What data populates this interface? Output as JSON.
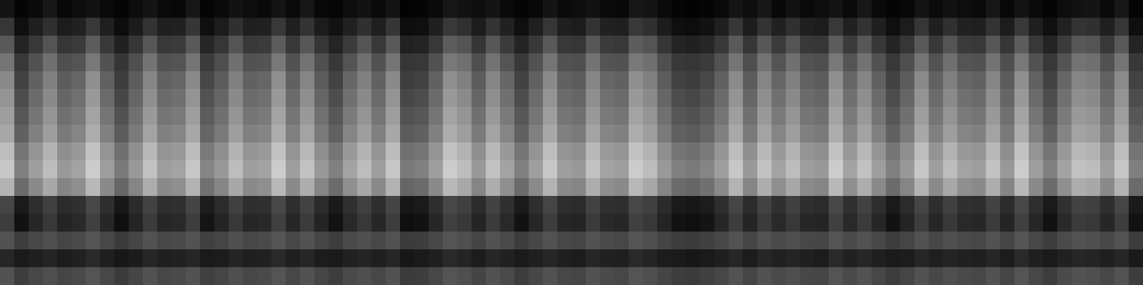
{
  "chart_data": {
    "type": "heatmap",
    "tick_labels": false,
    "zlim": [
      0,
      100
    ],
    "z": [
      [
        8,
        2,
        4,
        9,
        3,
        5,
        7,
        4,
        2,
        5,
        8,
        4,
        3,
        9,
        2,
        4,
        7,
        5,
        4,
        8,
        4,
        9,
        3,
        2,
        5,
        7,
        4,
        8,
        1,
        2,
        4,
        9,
        7,
        5,
        8,
        4,
        2,
        3,
        8,
        4,
        5,
        7,
        4,
        3,
        9,
        8,
        4,
        2,
        1,
        2,
        4,
        8,
        5,
        9,
        3,
        7,
        4,
        5,
        8,
        4,
        9,
        4,
        2,
        3,
        8,
        4,
        7,
        5,
        4,
        9,
        3,
        8,
        4,
        2,
        5,
        7,
        8,
        4,
        9,
        2
      ],
      [
        21,
        6,
        12,
        19,
        11,
        13,
        22,
        12,
        5,
        11,
        20,
        12,
        13,
        21,
        6,
        11,
        19,
        12,
        13,
        22,
        12,
        20,
        11,
        7,
        13,
        19,
        12,
        21,
        5,
        6,
        12,
        22,
        19,
        11,
        20,
        13,
        6,
        12,
        21,
        12,
        11,
        20,
        13,
        12,
        22,
        19,
        11,
        6,
        5,
        7,
        12,
        21,
        11,
        20,
        13,
        19,
        12,
        11,
        22,
        13,
        20,
        12,
        6,
        11,
        21,
        12,
        19,
        13,
        12,
        20,
        11,
        22,
        12,
        6,
        13,
        20,
        19,
        12,
        21,
        6
      ],
      [
        35,
        14,
        22,
        33,
        21,
        23,
        36,
        22,
        13,
        21,
        34,
        22,
        23,
        35,
        15,
        21,
        33,
        22,
        23,
        36,
        22,
        34,
        21,
        14,
        23,
        33,
        22,
        35,
        13,
        14,
        22,
        36,
        33,
        21,
        34,
        23,
        14,
        22,
        35,
        22,
        21,
        34,
        23,
        22,
        36,
        33,
        21,
        14,
        13,
        15,
        22,
        35,
        21,
        34,
        23,
        33,
        22,
        21,
        36,
        23,
        34,
        22,
        14,
        21,
        35,
        22,
        33,
        23,
        22,
        34,
        21,
        36,
        22,
        14,
        23,
        34,
        33,
        22,
        35,
        14
      ],
      [
        46,
        22,
        32,
        44,
        31,
        33,
        47,
        32,
        21,
        31,
        45,
        32,
        33,
        46,
        23,
        31,
        44,
        32,
        33,
        47,
        32,
        45,
        31,
        22,
        33,
        44,
        32,
        46,
        21,
        22,
        32,
        47,
        44,
        31,
        45,
        33,
        22,
        32,
        46,
        32,
        31,
        45,
        33,
        32,
        47,
        44,
        31,
        22,
        21,
        23,
        32,
        46,
        31,
        45,
        33,
        44,
        32,
        31,
        47,
        33,
        45,
        32,
        22,
        31,
        46,
        32,
        44,
        33,
        32,
        45,
        31,
        47,
        32,
        22,
        33,
        45,
        44,
        32,
        46,
        22
      ],
      [
        54,
        26,
        38,
        50,
        36,
        40,
        56,
        38,
        24,
        36,
        52,
        38,
        40,
        54,
        28,
        36,
        50,
        38,
        40,
        56,
        38,
        52,
        36,
        26,
        40,
        50,
        38,
        54,
        24,
        26,
        38,
        56,
        50,
        36,
        52,
        40,
        26,
        38,
        54,
        38,
        36,
        52,
        40,
        38,
        56,
        50,
        36,
        26,
        24,
        28,
        38,
        54,
        36,
        52,
        40,
        50,
        38,
        36,
        56,
        40,
        52,
        38,
        26,
        36,
        54,
        38,
        50,
        40,
        38,
        52,
        36,
        56,
        38,
        26,
        40,
        52,
        50,
        38,
        54,
        26
      ],
      [
        58,
        30,
        42,
        54,
        40,
        44,
        60,
        42,
        28,
        40,
        56,
        42,
        44,
        58,
        32,
        40,
        54,
        42,
        44,
        60,
        42,
        56,
        40,
        30,
        44,
        54,
        42,
        58,
        28,
        30,
        42,
        60,
        54,
        40,
        56,
        44,
        30,
        42,
        58,
        42,
        40,
        56,
        44,
        42,
        60,
        54,
        40,
        30,
        28,
        32,
        42,
        58,
        40,
        56,
        44,
        54,
        42,
        40,
        60,
        44,
        56,
        42,
        30,
        40,
        58,
        42,
        54,
        44,
        42,
        56,
        40,
        60,
        42,
        30,
        44,
        56,
        54,
        42,
        58,
        30
      ],
      [
        62,
        34,
        46,
        58,
        44,
        48,
        64,
        46,
        32,
        44,
        60,
        46,
        48,
        62,
        36,
        44,
        58,
        46,
        48,
        64,
        46,
        60,
        44,
        34,
        48,
        58,
        46,
        62,
        32,
        34,
        46,
        64,
        58,
        44,
        60,
        48,
        34,
        46,
        62,
        46,
        44,
        60,
        48,
        46,
        64,
        58,
        44,
        34,
        32,
        36,
        46,
        62,
        44,
        60,
        48,
        58,
        46,
        44,
        64,
        48,
        60,
        46,
        34,
        44,
        62,
        46,
        58,
        48,
        46,
        60,
        44,
        64,
        46,
        34,
        48,
        60,
        58,
        46,
        62,
        34
      ],
      [
        66,
        38,
        50,
        62,
        48,
        52,
        68,
        50,
        36,
        48,
        64,
        50,
        52,
        66,
        40,
        48,
        62,
        50,
        52,
        68,
        50,
        64,
        48,
        38,
        52,
        62,
        50,
        66,
        36,
        38,
        50,
        68,
        62,
        48,
        64,
        52,
        38,
        50,
        66,
        50,
        48,
        64,
        52,
        50,
        68,
        62,
        48,
        38,
        36,
        40,
        50,
        66,
        48,
        64,
        52,
        62,
        50,
        48,
        68,
        52,
        64,
        50,
        38,
        48,
        66,
        50,
        62,
        52,
        50,
        64,
        48,
        68,
        50,
        38,
        52,
        64,
        62,
        50,
        66,
        38
      ],
      [
        74,
        46,
        58,
        70,
        56,
        60,
        76,
        58,
        44,
        56,
        72,
        58,
        60,
        74,
        48,
        56,
        70,
        58,
        60,
        76,
        58,
        72,
        56,
        46,
        60,
        70,
        58,
        74,
        44,
        46,
        58,
        76,
        70,
        56,
        72,
        60,
        46,
        58,
        74,
        58,
        56,
        72,
        60,
        58,
        76,
        70,
        56,
        46,
        44,
        48,
        58,
        74,
        56,
        72,
        60,
        70,
        58,
        56,
        76,
        60,
        72,
        58,
        46,
        56,
        74,
        58,
        70,
        60,
        58,
        72,
        56,
        76,
        58,
        46,
        60,
        72,
        70,
        58,
        74,
        46
      ],
      [
        78,
        50,
        62,
        74,
        60,
        64,
        80,
        62,
        48,
        60,
        76,
        62,
        64,
        78,
        52,
        60,
        74,
        62,
        64,
        80,
        62,
        76,
        60,
        50,
        64,
        74,
        62,
        78,
        48,
        50,
        62,
        80,
        74,
        60,
        76,
        64,
        50,
        62,
        78,
        62,
        60,
        76,
        64,
        62,
        80,
        74,
        60,
        50,
        48,
        52,
        62,
        78,
        60,
        76,
        64,
        74,
        62,
        60,
        80,
        64,
        76,
        62,
        50,
        60,
        78,
        62,
        74,
        64,
        62,
        76,
        60,
        80,
        62,
        50,
        64,
        76,
        74,
        62,
        78,
        50
      ],
      [
        70,
        42,
        54,
        66,
        52,
        56,
        72,
        54,
        40,
        52,
        68,
        54,
        56,
        70,
        44,
        52,
        66,
        54,
        56,
        72,
        54,
        68,
        52,
        42,
        56,
        66,
        54,
        70,
        40,
        42,
        54,
        72,
        66,
        52,
        68,
        56,
        42,
        54,
        70,
        54,
        52,
        68,
        56,
        54,
        72,
        66,
        52,
        42,
        40,
        44,
        54,
        70,
        52,
        68,
        56,
        66,
        54,
        52,
        72,
        56,
        68,
        54,
        42,
        52,
        70,
        54,
        66,
        56,
        54,
        68,
        52,
        72,
        54,
        42,
        56,
        68,
        66,
        54,
        70,
        42
      ],
      [
        27,
        10,
        18,
        25,
        17,
        19,
        28,
        18,
        9,
        17,
        26,
        18,
        19,
        27,
        11,
        17,
        25,
        18,
        19,
        28,
        18,
        26,
        17,
        10,
        19,
        25,
        18,
        27,
        9,
        10,
        18,
        28,
        25,
        17,
        26,
        19,
        10,
        18,
        27,
        18,
        17,
        26,
        19,
        18,
        28,
        25,
        17,
        10,
        9,
        11,
        18,
        27,
        17,
        26,
        19,
        25,
        18,
        17,
        28,
        19,
        26,
        18,
        10,
        17,
        27,
        18,
        25,
        19,
        18,
        26,
        17,
        28,
        18,
        10,
        19,
        26,
        25,
        18,
        27,
        10
      ],
      [
        24,
        7,
        15,
        22,
        14,
        16,
        25,
        15,
        6,
        14,
        23,
        15,
        16,
        24,
        8,
        14,
        22,
        15,
        16,
        25,
        15,
        23,
        14,
        7,
        16,
        22,
        15,
        24,
        6,
        7,
        15,
        25,
        22,
        14,
        23,
        16,
        7,
        15,
        24,
        15,
        14,
        23,
        16,
        15,
        25,
        22,
        14,
        7,
        6,
        8,
        15,
        24,
        14,
        23,
        16,
        22,
        15,
        14,
        25,
        16,
        23,
        15,
        7,
        14,
        24,
        15,
        22,
        16,
        15,
        23,
        14,
        25,
        15,
        7,
        16,
        23,
        22,
        15,
        24,
        7
      ],
      [
        32,
        24,
        28,
        31,
        27,
        29,
        33,
        28,
        23,
        27,
        32,
        28,
        29,
        32,
        25,
        27,
        31,
        28,
        29,
        33,
        28,
        32,
        27,
        24,
        29,
        31,
        28,
        32,
        23,
        24,
        28,
        33,
        31,
        27,
        32,
        29,
        24,
        28,
        32,
        28,
        27,
        32,
        29,
        28,
        33,
        31,
        27,
        24,
        23,
        25,
        28,
        32,
        27,
        32,
        29,
        31,
        28,
        27,
        33,
        29,
        32,
        28,
        24,
        27,
        32,
        28,
        31,
        29,
        28,
        32,
        27,
        33,
        28,
        24,
        29,
        32,
        31,
        28,
        32,
        24
      ],
      [
        15,
        10,
        12,
        14,
        11,
        13,
        16,
        12,
        9,
        11,
        15,
        12,
        13,
        15,
        10,
        11,
        14,
        12,
        13,
        16,
        12,
        15,
        11,
        10,
        13,
        14,
        12,
        15,
        9,
        10,
        12,
        16,
        14,
        11,
        15,
        13,
        10,
        12,
        15,
        12,
        11,
        15,
        13,
        12,
        16,
        14,
        11,
        10,
        9,
        10,
        12,
        15,
        11,
        15,
        13,
        14,
        12,
        11,
        16,
        13,
        15,
        12,
        10,
        11,
        15,
        12,
        14,
        13,
        12,
        15,
        11,
        16,
        12,
        10,
        13,
        15,
        14,
        12,
        15,
        10
      ],
      [
        32,
        24,
        28,
        31,
        27,
        29,
        33,
        28,
        23,
        27,
        32,
        28,
        29,
        32,
        25,
        27,
        31,
        28,
        29,
        33,
        28,
        32,
        27,
        24,
        29,
        31,
        28,
        32,
        23,
        24,
        28,
        33,
        31,
        27,
        32,
        29,
        24,
        28,
        32,
        28,
        27,
        32,
        29,
        28,
        33,
        31,
        27,
        24,
        23,
        25,
        28,
        32,
        27,
        32,
        29,
        31,
        28,
        27,
        33,
        29,
        32,
        28,
        24,
        27,
        32,
        28,
        31,
        29,
        28,
        32,
        27,
        33,
        28,
        24,
        29,
        32,
        31,
        28,
        32,
        24
      ]
    ]
  }
}
